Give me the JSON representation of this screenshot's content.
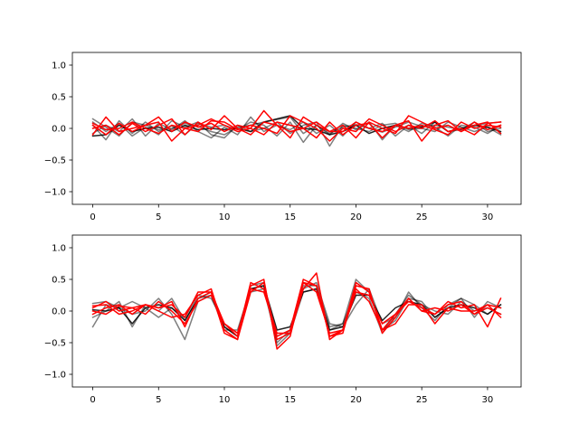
{
  "chart_data": [
    {
      "type": "line",
      "title": "",
      "xlabel": "",
      "ylabel": "",
      "xlim": [
        -1.55,
        32.55
      ],
      "ylim": [
        -1.2,
        1.2
      ],
      "xticks": [
        0,
        5,
        10,
        15,
        20,
        25,
        30
      ],
      "yticks": [
        -1.0,
        -0.5,
        0.0,
        0.5,
        1.0
      ],
      "xtick_labels": [
        "0",
        "5",
        "10",
        "15",
        "20",
        "25",
        "30"
      ],
      "ytick_labels": [
        "−1.0",
        "−0.5",
        "0.0",
        "0.5",
        "1.0"
      ],
      "grid": false,
      "x": [
        0,
        1,
        2,
        3,
        4,
        5,
        6,
        7,
        8,
        9,
        10,
        11,
        12,
        13,
        14,
        15,
        16,
        17,
        18,
        19,
        20,
        21,
        22,
        23,
        24,
        25,
        26,
        27,
        28,
        29,
        30,
        31
      ],
      "series": [
        {
          "color": "#000000",
          "opacity": 0.5,
          "values": [
            0.15,
            0.02,
            -0.12,
            0.1,
            0.05,
            -0.02,
            0.0,
            0.08,
            0.03,
            -0.05,
            -0.1,
            0.02,
            0.05,
            0.1,
            0.14,
            0.18,
            -0.08,
            0.05,
            -0.08,
            0.02,
            0.06,
            0.0,
            -0.06,
            0.02,
            0.1,
            0.03,
            0.05,
            0.02,
            -0.02,
            0.04,
            0.08,
            0.1
          ]
        },
        {
          "color": "#000000",
          "opacity": 0.5,
          "values": [
            0.05,
            -0.18,
            0.12,
            -0.08,
            0.1,
            -0.05,
            0.04,
            -0.1,
            0.08,
            0.02,
            0.05,
            -0.02,
            0.1,
            0.05,
            -0.12,
            0.1,
            -0.22,
            0.05,
            -0.1,
            0.08,
            -0.02,
            0.1,
            -0.18,
            0.05,
            -0.05,
            0.08,
            0.02,
            -0.12,
            0.05,
            0.02,
            -0.08,
            0.05
          ]
        },
        {
          "color": "#000000",
          "opacity": 0.5,
          "values": [
            -0.08,
            0.05,
            -0.05,
            0.15,
            -0.12,
            0.08,
            -0.02,
            0.12,
            -0.05,
            -0.15,
            0.02,
            -0.1,
            0.18,
            -0.05,
            0.05,
            -0.02,
            0.1,
            -0.08,
            0.05,
            -0.12,
            0.1,
            0.0,
            0.08,
            -0.12,
            0.05,
            -0.08,
            0.1,
            -0.05,
            -0.02,
            0.1,
            -0.05,
            0.0
          ]
        },
        {
          "color": "#000000",
          "opacity": 0.5,
          "values": [
            0.1,
            -0.05,
            0.08,
            -0.12,
            0.02,
            -0.1,
            0.12,
            0.02,
            0.1,
            -0.1,
            -0.15,
            0.05,
            -0.05,
            0.0,
            0.1,
            -0.08,
            0.05,
            0.1,
            -0.28,
            0.05,
            0.0,
            -0.05,
            0.05,
            0.08,
            -0.02,
            0.0,
            -0.05,
            0.1,
            0.02,
            -0.05,
            0.02,
            -0.1
          ]
        },
        {
          "color": "#000000",
          "opacity": 0.85,
          "values": [
            -0.12,
            -0.1,
            0.05,
            -0.05,
            0.0,
            0.02,
            -0.05,
            0.05,
            -0.02,
            0.0,
            -0.02,
            0.0,
            -0.05,
            0.1,
            0.15,
            0.2,
            0.0,
            -0.02,
            -0.1,
            -0.05,
            0.05,
            -0.08,
            0.0,
            0.05,
            0.0,
            0.02,
            0.1,
            -0.05,
            0.0,
            0.05,
            0.02,
            -0.05
          ]
        },
        {
          "color": "#ff0000",
          "opacity": 1,
          "values": [
            0.05,
            -0.1,
            0.08,
            -0.05,
            0.05,
            0.1,
            -0.2,
            0.0,
            0.05,
            0.15,
            0.05,
            -0.05,
            0.0,
            -0.1,
            0.1,
            0.05,
            0.0,
            0.1,
            -0.05,
            0.05,
            -0.15,
            0.1,
            0.0,
            -0.08,
            0.2,
            0.1,
            0.0,
            0.05,
            -0.05,
            0.1,
            -0.02,
            0.05
          ]
        },
        {
          "color": "#ff0000",
          "opacity": 1,
          "values": [
            -0.1,
            0.18,
            -0.05,
            0.0,
            0.05,
            0.18,
            -0.05,
            0.1,
            0.02,
            0.08,
            -0.05,
            0.05,
            0.0,
            0.28,
            0.05,
            -0.15,
            0.18,
            0.05,
            -0.05,
            -0.05,
            0.1,
            0.0,
            -0.05,
            0.05,
            0.12,
            -0.2,
            0.05,
            0.12,
            -0.05,
            0.05,
            0.1,
            -0.08
          ]
        },
        {
          "color": "#ff0000",
          "opacity": 1,
          "values": [
            0.0,
            0.05,
            -0.1,
            0.08,
            -0.05,
            0.05,
            0.15,
            -0.1,
            0.1,
            -0.02,
            0.2,
            0.0,
            -0.1,
            0.1,
            0.05,
            -0.05,
            0.0,
            -0.15,
            0.1,
            -0.1,
            0.05,
            0.08,
            -0.15,
            0.05,
            0.0,
            0.05,
            -0.02,
            -0.1,
            0.1,
            0.0,
            0.05,
            0.02
          ]
        },
        {
          "color": "#ff0000",
          "opacity": 1,
          "values": [
            0.08,
            -0.02,
            0.0,
            0.1,
            0.0,
            -0.08,
            0.05,
            0.0,
            -0.05,
            0.12,
            0.1,
            -0.02,
            0.05,
            0.0,
            -0.08,
            0.2,
            0.1,
            0.0,
            -0.2,
            0.0,
            -0.05,
            0.15,
            0.05,
            -0.05,
            0.05,
            0.0,
            0.12,
            -0.05,
            0.0,
            -0.1,
            0.08,
            0.1
          ]
        }
      ]
    },
    {
      "type": "line",
      "title": "",
      "xlabel": "",
      "ylabel": "",
      "xlim": [
        -1.55,
        32.55
      ],
      "ylim": [
        -1.2,
        1.2
      ],
      "xticks": [
        0,
        5,
        10,
        15,
        20,
        25,
        30
      ],
      "yticks": [
        -1.0,
        -0.5,
        0.0,
        0.5,
        1.0
      ],
      "xtick_labels": [
        "0",
        "5",
        "10",
        "15",
        "20",
        "25",
        "30"
      ],
      "ytick_labels": [
        "−1.0",
        "−0.5",
        "0.0",
        "0.5",
        "1.0"
      ],
      "grid": false,
      "x": [
        0,
        1,
        2,
        3,
        4,
        5,
        6,
        7,
        8,
        9,
        10,
        11,
        12,
        13,
        14,
        15,
        16,
        17,
        18,
        19,
        20,
        21,
        22,
        23,
        24,
        25,
        26,
        27,
        28,
        29,
        30,
        31
      ],
      "series": [
        {
          "color": "#000000",
          "opacity": 0.5,
          "values": [
            -0.25,
            0.1,
            0.05,
            -0.05,
            0.0,
            0.2,
            -0.05,
            -0.45,
            0.15,
            0.25,
            -0.25,
            -0.4,
            0.3,
            0.35,
            -0.5,
            -0.3,
            0.35,
            0.45,
            -0.2,
            -0.25,
            0.1,
            0.35,
            -0.2,
            -0.1,
            0.3,
            0.05,
            -0.15,
            0.1,
            0.2,
            -0.1,
            0.15,
            0.05
          ]
        },
        {
          "color": "#000000",
          "opacity": 0.5,
          "values": [
            0.12,
            0.15,
            0.05,
            0.15,
            0.05,
            -0.1,
            0.05,
            -0.1,
            0.25,
            0.2,
            -0.2,
            -0.35,
            0.4,
            0.45,
            -0.55,
            -0.35,
            0.3,
            0.35,
            -0.3,
            -0.2,
            0.5,
            0.3,
            -0.3,
            -0.15,
            0.2,
            0.15,
            -0.1,
            0.05,
            0.2,
            0.1,
            -0.05,
            0.1
          ]
        },
        {
          "color": "#000000",
          "opacity": 0.5,
          "values": [
            -0.1,
            0.0,
            0.15,
            -0.25,
            0.1,
            0.0,
            0.2,
            -0.15,
            0.2,
            0.25,
            -0.3,
            -0.3,
            0.35,
            0.4,
            -0.4,
            -0.3,
            0.4,
            0.4,
            -0.25,
            -0.2,
            0.3,
            0.2,
            -0.35,
            -0.05,
            0.25,
            0.1,
            0.0,
            -0.05,
            0.15,
            0.0,
            0.05,
            -0.05
          ]
        },
        {
          "color": "#000000",
          "opacity": 0.85,
          "values": [
            0.02,
            0.0,
            0.05,
            -0.2,
            0.05,
            0.1,
            0.05,
            -0.15,
            0.2,
            0.3,
            -0.25,
            -0.4,
            0.35,
            0.4,
            -0.3,
            -0.25,
            0.3,
            0.35,
            -0.3,
            -0.25,
            0.25,
            0.25,
            -0.15,
            0.05,
            0.15,
            0.1,
            -0.1,
            0.05,
            0.1,
            0.05,
            -0.05,
            0.1
          ]
        },
        {
          "color": "#ff0000",
          "opacity": 1,
          "values": [
            0.05,
            0.15,
            0.0,
            0.05,
            0.1,
            0.05,
            0.15,
            -0.25,
            0.2,
            0.3,
            -0.35,
            -0.45,
            0.4,
            0.5,
            -0.6,
            -0.4,
            0.45,
            0.4,
            -0.4,
            -0.35,
            0.4,
            0.35,
            -0.35,
            -0.1,
            0.2,
            0.0,
            -0.05,
            0.1,
            0.15,
            -0.05,
            0.1,
            -0.1
          ]
        },
        {
          "color": "#ff0000",
          "opacity": 1,
          "values": [
            -0.05,
            0.05,
            0.1,
            -0.05,
            0.1,
            0.0,
            -0.1,
            -0.05,
            0.25,
            0.35,
            -0.3,
            -0.45,
            0.3,
            0.45,
            -0.45,
            -0.35,
            0.35,
            0.6,
            -0.45,
            -0.3,
            0.45,
            0.3,
            -0.3,
            -0.05,
            0.15,
            0.05,
            -0.05,
            0.15,
            0.05,
            0.1,
            -0.25,
            0.2
          ]
        },
        {
          "color": "#ff0000",
          "opacity": 1,
          "values": [
            0.0,
            -0.05,
            0.08,
            0.05,
            -0.05,
            0.15,
            0.0,
            -0.2,
            0.15,
            0.25,
            -0.2,
            -0.35,
            0.35,
            0.3,
            -0.35,
            -0.35,
            0.45,
            0.3,
            -0.35,
            -0.3,
            0.35,
            0.15,
            -0.3,
            -0.2,
            0.1,
            0.1,
            -0.2,
            0.05,
            0.0,
            0.0,
            0.1,
            0.05
          ]
        },
        {
          "color": "#ff0000",
          "opacity": 1,
          "values": [
            0.08,
            0.1,
            -0.05,
            0.0,
            0.1,
            0.05,
            0.1,
            -0.1,
            0.3,
            0.3,
            -0.2,
            -0.4,
            0.45,
            0.35,
            -0.4,
            -0.3,
            0.5,
            0.4,
            -0.4,
            -0.3,
            0.3,
            0.25,
            -0.2,
            -0.05,
            0.2,
            0.0,
            0.05,
            0.0,
            0.1,
            -0.05,
            0.05,
            -0.05
          ]
        }
      ]
    }
  ]
}
